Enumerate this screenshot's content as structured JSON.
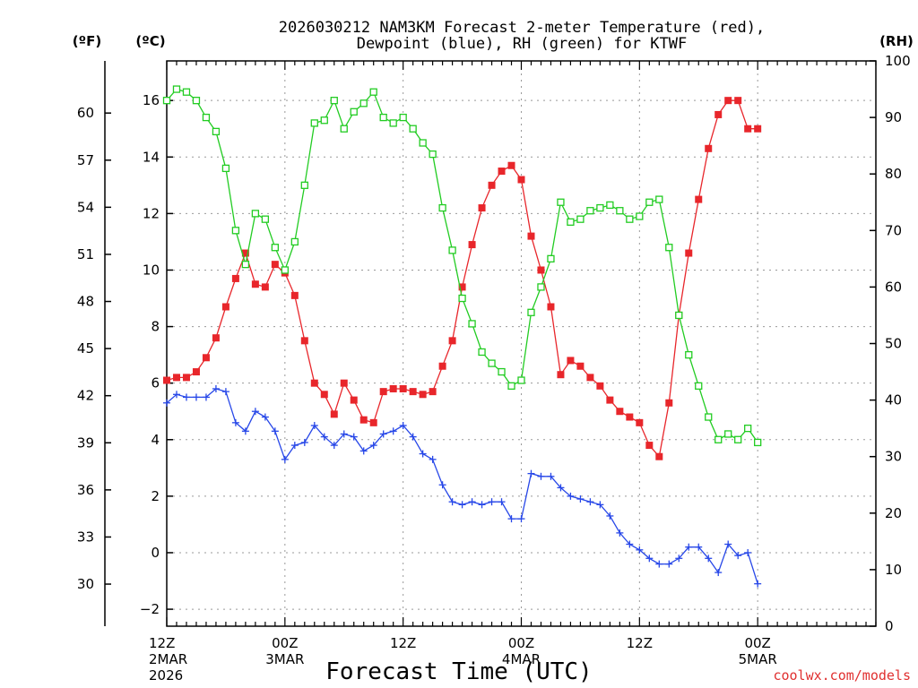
{
  "chart_data": {
    "type": "line",
    "title_line1": "2026030212 NAM3KM Forecast 2-meter Temperature (red),",
    "title_line2": "Dewpoint (blue), RH (green) for KTWF",
    "xlabel": "Forecast Time (UTC)",
    "credit": "coolwx.com/models",
    "units": {
      "fahrenheit": "(ºF)",
      "celsius": "(ºC)",
      "rh": "(RH)"
    },
    "x_range_hours": [
      0,
      72
    ],
    "celsius_range": [
      -2.6,
      17.4
    ],
    "rh_range": [
      0,
      100
    ],
    "celsius_ticks": [
      -2,
      0,
      2,
      4,
      6,
      8,
      10,
      12,
      14,
      16
    ],
    "fahrenheit_ticks": [
      30,
      33,
      36,
      39,
      42,
      45,
      48,
      51,
      54,
      57,
      60
    ],
    "rh_ticks": [
      0,
      10,
      20,
      30,
      40,
      50,
      60,
      70,
      80,
      90,
      100
    ],
    "x_ticks": [
      {
        "hour": 0,
        "lines": [
          "12Z",
          "2MAR",
          "2026"
        ]
      },
      {
        "hour": 12,
        "lines": [
          "00Z",
          "3MAR"
        ]
      },
      {
        "hour": 24,
        "lines": [
          "12Z"
        ]
      },
      {
        "hour": 36,
        "lines": [
          "00Z",
          "4MAR"
        ]
      },
      {
        "hour": 48,
        "lines": [
          "12Z"
        ]
      },
      {
        "hour": 60,
        "lines": [
          "00Z",
          "5MAR"
        ]
      }
    ],
    "series": [
      {
        "name": "2-meter Temperature",
        "unit": "°C",
        "color": "#e8262b",
        "marker": "filled-square",
        "x": [
          0,
          1,
          2,
          3,
          4,
          5,
          6,
          7,
          8,
          9,
          10,
          11,
          12,
          13,
          14,
          15,
          16,
          17,
          18,
          19,
          20,
          21,
          22,
          23,
          24,
          25,
          26,
          27,
          28,
          29,
          30,
          31,
          32,
          33,
          34,
          35,
          36,
          37,
          38,
          39,
          40,
          41,
          42,
          43,
          44,
          45,
          46,
          47,
          48,
          49,
          50,
          51,
          52,
          53,
          54,
          55,
          56,
          57,
          58,
          59,
          60
        ],
        "values": [
          6.1,
          6.2,
          6.2,
          6.4,
          6.9,
          7.6,
          8.7,
          9.7,
          10.6,
          9.5,
          9.4,
          10.2,
          9.9,
          9.1,
          7.5,
          6.0,
          5.6,
          4.9,
          6.0,
          5.4,
          4.7,
          4.6,
          5.7,
          5.8,
          5.8,
          5.7,
          5.6,
          5.7,
          6.6,
          7.5,
          9.4,
          10.9,
          12.2,
          13.0,
          13.5,
          13.7,
          13.2,
          11.2,
          10.0,
          8.7,
          6.3,
          6.8,
          6.6,
          6.2,
          5.9,
          5.4,
          5.0,
          4.8,
          4.6,
          3.8,
          3.4,
          5.3,
          8.4,
          10.6,
          12.5,
          14.3,
          15.5,
          16.0,
          16.0,
          15.0,
          15.0
        ]
      },
      {
        "name": "Dewpoint",
        "unit": "°C",
        "color": "#2747e8",
        "marker": "plus",
        "x": [
          0,
          1,
          2,
          3,
          4,
          5,
          6,
          7,
          8,
          9,
          10,
          11,
          12,
          13,
          14,
          15,
          16,
          17,
          18,
          19,
          20,
          21,
          22,
          23,
          24,
          25,
          26,
          27,
          28,
          29,
          30,
          31,
          32,
          33,
          34,
          35,
          36,
          37,
          38,
          39,
          40,
          41,
          42,
          43,
          44,
          45,
          46,
          47,
          48,
          49,
          50,
          51,
          52,
          53,
          54,
          55,
          56,
          57,
          58,
          59,
          60
        ],
        "values": [
          5.3,
          5.6,
          5.5,
          5.5,
          5.5,
          5.8,
          5.7,
          4.6,
          4.3,
          5.0,
          4.8,
          4.3,
          3.3,
          3.8,
          3.9,
          4.5,
          4.1,
          3.8,
          4.2,
          4.1,
          3.6,
          3.8,
          4.2,
          4.3,
          4.5,
          4.1,
          3.5,
          3.3,
          2.4,
          1.8,
          1.7,
          1.8,
          1.7,
          1.8,
          1.8,
          1.2,
          1.2,
          2.8,
          2.7,
          2.7,
          2.3,
          2.0,
          1.9,
          1.8,
          1.7,
          1.3,
          0.7,
          0.3,
          0.1,
          -0.2,
          -0.4,
          -0.4,
          -0.2,
          0.2,
          0.2,
          -0.2,
          -0.7,
          0.3,
          -0.1,
          0.0,
          -1.1
        ]
      },
      {
        "name": "Relative Humidity",
        "unit": "%",
        "color": "#22cc22",
        "marker": "open-square",
        "x": [
          0,
          1,
          2,
          3,
          4,
          5,
          6,
          7,
          8,
          9,
          10,
          11,
          12,
          13,
          14,
          15,
          16,
          17,
          18,
          19,
          20,
          21,
          22,
          23,
          24,
          25,
          26,
          27,
          28,
          29,
          30,
          31,
          32,
          33,
          34,
          35,
          36,
          37,
          38,
          39,
          40,
          41,
          42,
          43,
          44,
          45,
          46,
          47,
          48,
          49,
          50,
          51,
          52,
          53,
          54,
          55,
          56,
          57,
          58,
          59,
          60
        ],
        "values": [
          93,
          95,
          94.5,
          93,
          90,
          87.5,
          81,
          70,
          64,
          73,
          72,
          67,
          63,
          68,
          78,
          89,
          89.5,
          93,
          88,
          91,
          92.5,
          94.5,
          90,
          89,
          90,
          88,
          85.5,
          83.5,
          74,
          66.5,
          58,
          53.5,
          48.5,
          46.5,
          45,
          42.5,
          43.5,
          55.5,
          60,
          65,
          75,
          71.5,
          72,
          73.5,
          74,
          74.5,
          73.5,
          72,
          72.5,
          75,
          75.5,
          67,
          55,
          48,
          42.5,
          37,
          33,
          34,
          33,
          35,
          32.5
        ]
      }
    ]
  }
}
